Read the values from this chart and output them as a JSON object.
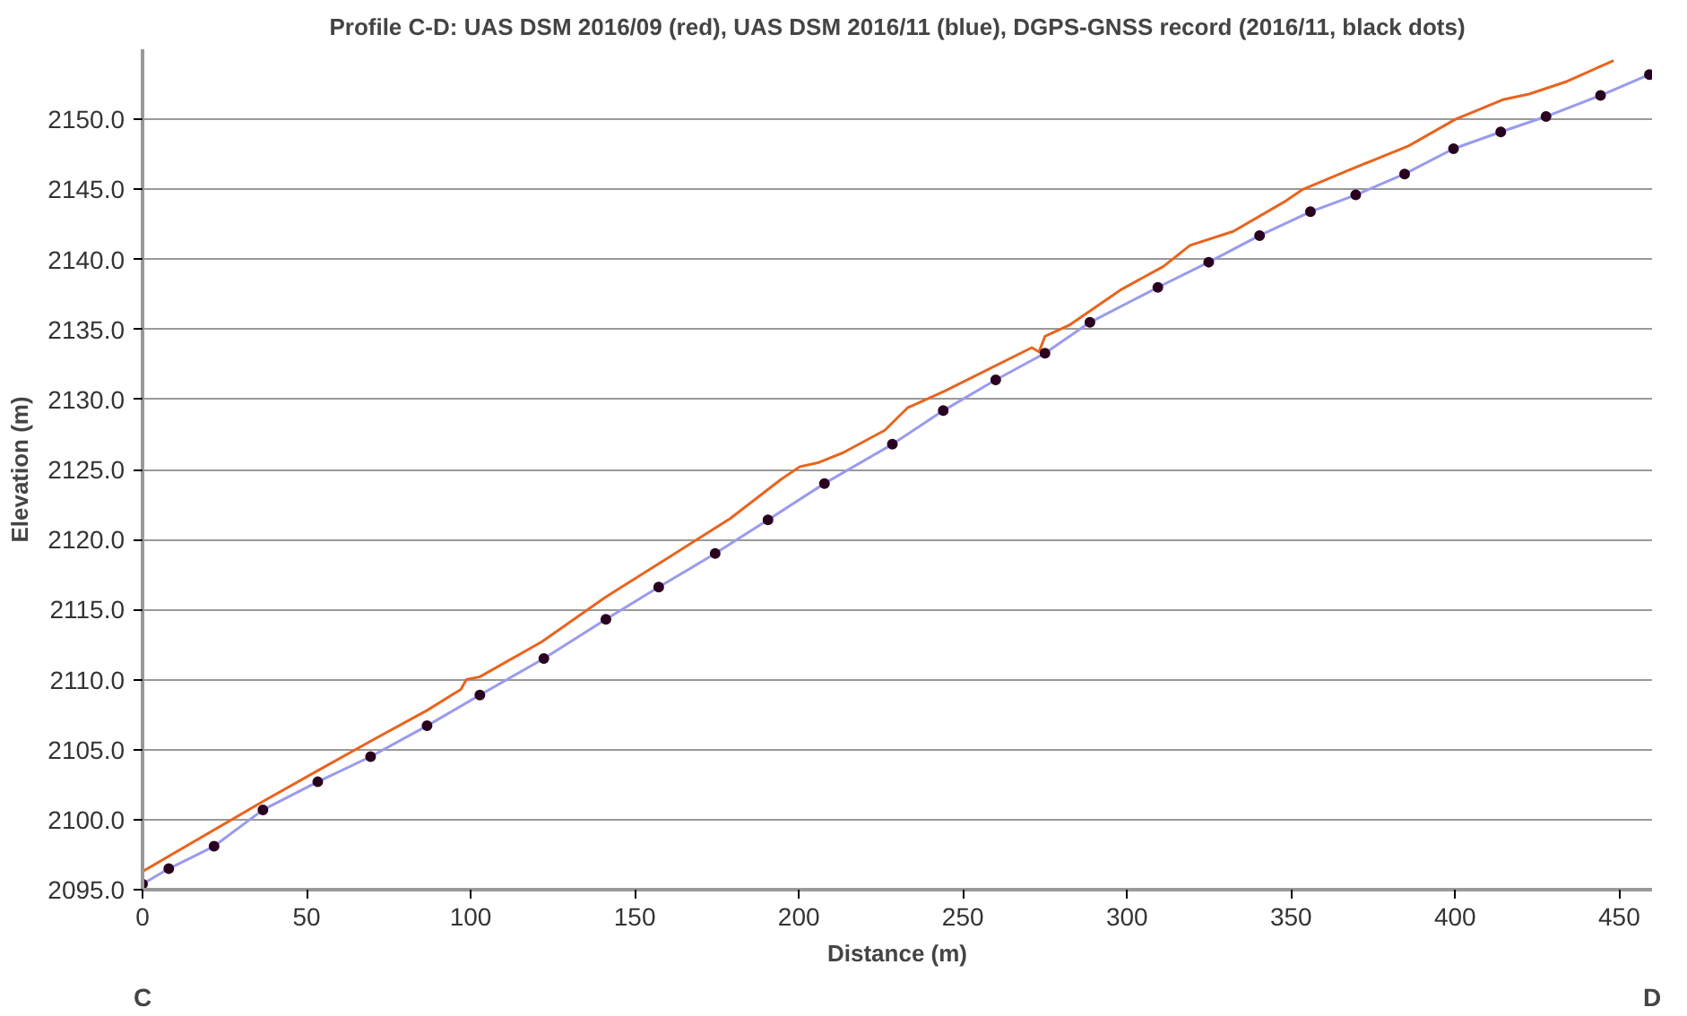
{
  "chart_data": {
    "type": "line",
    "title": "Profile C-D: UAS DSM 2016/09 (red), UAS DSM 2016/11 (blue), DGPS-GNSS record (2016/11, black dots)",
    "xlabel": "Distance (m)",
    "ylabel": "Elevation (m)",
    "annotations": [
      "C",
      "D"
    ],
    "xlim": [
      0,
      460
    ],
    "xticks": [
      0,
      50,
      100,
      150,
      200,
      250,
      300,
      350,
      400,
      450
    ],
    "ylim": [
      2095,
      2155
    ],
    "yticks": [
      {
        "value": 2095,
        "label": "2095.0"
      },
      {
        "value": 2100,
        "label": "2100.0"
      },
      {
        "value": 2105,
        "label": "2105.0"
      },
      {
        "value": 2110,
        "label": "2110.0"
      },
      {
        "value": 2115,
        "label": "2115.0"
      },
      {
        "value": 2120,
        "label": "2120.0"
      },
      {
        "value": 2125,
        "label": "2125.0"
      },
      {
        "value": 2130,
        "label": "2130.0"
      },
      {
        "value": 2135,
        "label": "2135.0"
      },
      {
        "value": 2140,
        "label": "2140.0"
      },
      {
        "value": 2145,
        "label": "2145.0"
      },
      {
        "value": 2150,
        "label": "2150.0"
      }
    ],
    "grid": "y",
    "series": [
      {
        "color": "#e8641e",
        "x": [
          0,
          36.7,
          53.4,
          69.5,
          86.7,
          97.0,
          98.7,
          102.8,
          121.7,
          141.2,
          160.2,
          179.1,
          194.6,
          200.3,
          206.1,
          213.5,
          226.2,
          233.1,
          244.5,
          271.0,
          273.2,
          275.0,
          282.4,
          297.9,
          311.1,
          319.2,
          332.4,
          347.9,
          353.6,
          366.8,
          385.8,
          400.1,
          414.5,
          422.5,
          434.0,
          448.3
        ],
        "values": [
          2096.3,
          2101.3,
          2103.5,
          2105.6,
          2107.8,
          2109.3,
          2110.0,
          2110.2,
          2112.7,
          2115.9,
          2118.7,
          2121.5,
          2124.3,
          2125.2,
          2125.5,
          2126.2,
          2127.8,
          2129.4,
          2130.6,
          2133.7,
          2133.4,
          2134.5,
          2135.3,
          2137.8,
          2139.5,
          2141.0,
          2142.0,
          2144.1,
          2145.0,
          2146.3,
          2148.1,
          2150.0,
          2151.4,
          2151.8,
          2152.7,
          2154.2
        ]
      },
      {
        "color": "#9a9aee",
        "x": [
          0,
          8.0,
          21.8,
          36.7,
          53.4,
          69.5,
          86.7,
          102.8,
          122.3,
          141.2,
          157.3,
          174.5,
          190.6,
          207.8,
          228.5,
          244.0,
          260.0,
          275.0,
          288.7,
          309.4,
          324.9,
          340.4,
          355.9,
          369.7,
          384.6,
          399.5,
          413.9,
          427.7,
          444.3,
          459.2
        ],
        "values": [
          2095.4,
          2096.5,
          2098.1,
          2100.7,
          2102.7,
          2104.5,
          2106.7,
          2108.9,
          2111.5,
          2114.3,
          2116.6,
          2119.0,
          2121.4,
          2124.0,
          2126.8,
          2129.2,
          2131.4,
          2133.3,
          2135.5,
          2138.0,
          2139.8,
          2141.7,
          2143.4,
          2144.6,
          2146.1,
          2147.9,
          2149.1,
          2150.2,
          2151.7,
          2153.2
        ]
      },
      {
        "type": "scatter",
        "color": "#2a0020",
        "marker": "circle",
        "x": [
          0,
          8.0,
          21.8,
          36.7,
          53.4,
          69.5,
          86.7,
          102.8,
          122.3,
          141.2,
          157.3,
          174.5,
          190.6,
          207.8,
          228.5,
          244.0,
          260.0,
          275.0,
          288.7,
          309.4,
          324.9,
          340.4,
          355.9,
          369.7,
          384.6,
          399.5,
          413.9,
          427.7,
          444.3,
          459.2
        ],
        "values": [
          2095.4,
          2096.5,
          2098.1,
          2100.7,
          2102.7,
          2104.5,
          2106.7,
          2108.9,
          2111.5,
          2114.3,
          2116.6,
          2119.0,
          2121.4,
          2124.0,
          2126.8,
          2129.2,
          2131.4,
          2133.3,
          2135.5,
          2138.0,
          2139.8,
          2141.7,
          2143.4,
          2144.6,
          2146.1,
          2147.9,
          2149.1,
          2150.2,
          2151.7,
          2153.2
        ]
      }
    ]
  }
}
